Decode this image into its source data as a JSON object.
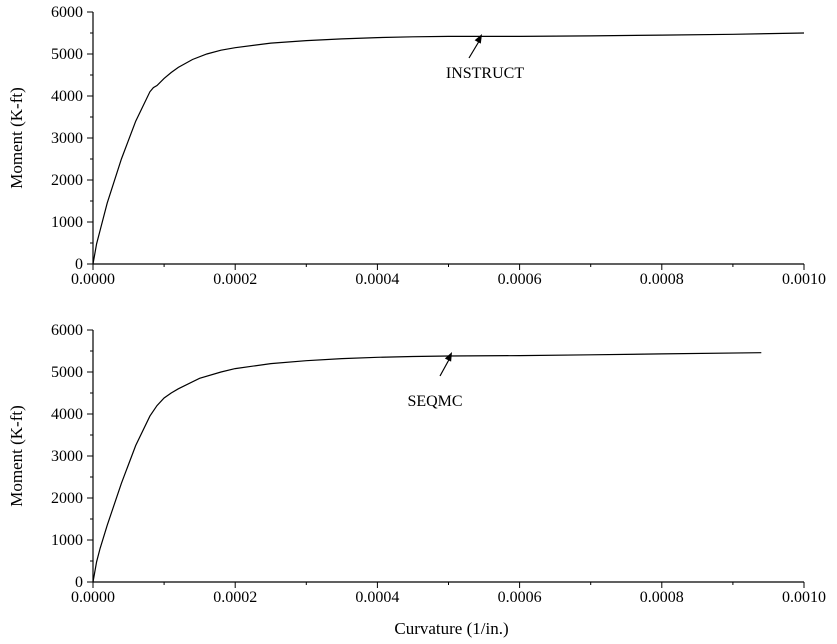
{
  "chart_data": [
    {
      "type": "line",
      "title": "",
      "xlabel": "",
      "ylabel": "Moment (K-ft)",
      "xlim": [
        0,
        0.001
      ],
      "ylim": [
        0,
        6000
      ],
      "x_ticks": [
        0,
        0.0002,
        0.0004,
        0.0006,
        0.0008,
        0.001
      ],
      "x_tick_labels": [
        "0.0000",
        "0.0002",
        "0.0004",
        "0.0006",
        "0.0008",
        "0.0010"
      ],
      "y_ticks": [
        0,
        1000,
        2000,
        3000,
        4000,
        5000,
        6000
      ],
      "y_tick_labels": [
        "0",
        "1000",
        "2000",
        "3000",
        "4000",
        "5000",
        "6000"
      ],
      "grid": false,
      "series": [
        {
          "x": [
            0,
            5e-06,
            1e-05,
            2e-05,
            4e-05,
            6e-05,
            8e-05,
            8.5e-05,
            9e-05,
            0.0001,
            0.00011,
            0.00012,
            0.00014,
            0.00016,
            0.00018,
            0.0002,
            0.00025,
            0.0003,
            0.00035,
            0.0004,
            0.00045,
            0.0005,
            0.00055,
            0.0006,
            0.0007,
            0.0008,
            0.0009,
            0.001
          ],
          "values": [
            0,
            480,
            800,
            1450,
            2500,
            3400,
            4100,
            4200,
            4250,
            4420,
            4560,
            4680,
            4870,
            5000,
            5090,
            5150,
            5260,
            5320,
            5360,
            5390,
            5410,
            5420,
            5420,
            5420,
            5430,
            5450,
            5470,
            5500
          ]
        }
      ],
      "annotations": [
        {
          "text": "INSTRUCT",
          "x": 0.00054,
          "y": 5420
        }
      ]
    },
    {
      "type": "line",
      "title": "",
      "xlabel": "Curvature (1/in.)",
      "ylabel": "Moment (K-ft)",
      "xlim": [
        0,
        0.001
      ],
      "ylim": [
        0,
        6000
      ],
      "x_ticks": [
        0,
        0.0002,
        0.0004,
        0.0006,
        0.0008,
        0.001
      ],
      "x_tick_labels": [
        "0.0000",
        "0.0002",
        "0.0004",
        "0.0006",
        "0.0008",
        "0.0010"
      ],
      "y_ticks": [
        0,
        1000,
        2000,
        3000,
        4000,
        5000,
        6000
      ],
      "y_tick_labels": [
        "0",
        "1000",
        "2000",
        "3000",
        "4000",
        "5000",
        "6000"
      ],
      "grid": false,
      "series": [
        {
          "x": [
            0,
            5e-06,
            1e-05,
            2e-05,
            4e-05,
            6e-05,
            8e-05,
            9e-05,
            0.0001,
            0.00011,
            0.00012,
            0.00015,
            0.00018,
            0.0002,
            0.00025,
            0.0003,
            0.00035,
            0.0004,
            0.00045,
            0.0005,
            0.0006,
            0.0007,
            0.0008,
            0.00094
          ],
          "values": [
            0,
            480,
            800,
            1350,
            2350,
            3250,
            3950,
            4200,
            4380,
            4500,
            4600,
            4850,
            5000,
            5080,
            5200,
            5270,
            5320,
            5350,
            5370,
            5380,
            5390,
            5410,
            5430,
            5460
          ]
        }
      ],
      "annotations": [
        {
          "text": "SEQMC",
          "x": 0.0005,
          "y": 5390
        }
      ]
    }
  ]
}
